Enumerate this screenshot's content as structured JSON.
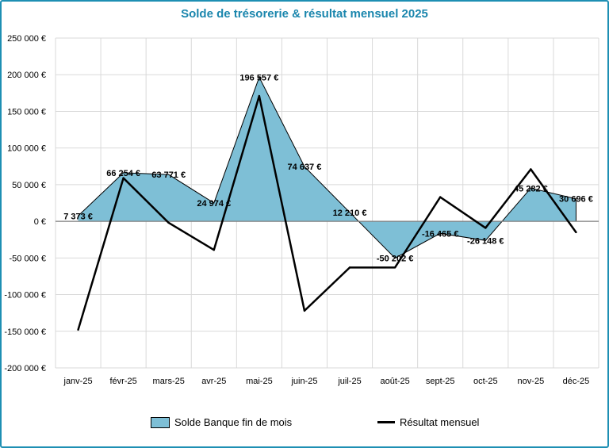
{
  "chart_data": {
    "type": "area+line",
    "title": "Solde de trésorerie & résultat mensuel 2025",
    "categories": [
      "janv-25",
      "févr-25",
      "mars-25",
      "avr-25",
      "mai-25",
      "juin-25",
      "juil-25",
      "août-25",
      "sept-25",
      "oct-25",
      "nov-25",
      "déc-25"
    ],
    "ylim": [
      -200000,
      250000
    ],
    "yticks": [
      250000,
      200000,
      150000,
      100000,
      50000,
      0,
      -50000,
      -100000,
      -150000,
      -200000
    ],
    "ytick_labels": [
      "250 000 €",
      "200 000 €",
      "150 000 €",
      "100 000 €",
      "50 000 €",
      "0 €",
      "-50 000 €",
      "-100 000 €",
      "-150 000 €",
      "-200 000 €"
    ],
    "grid": true,
    "series": [
      {
        "name": "Solde Banque fin de mois",
        "type": "area",
        "color": "#7ebfd6",
        "values": [
          7373,
          66254,
          63771,
          24974,
          196557,
          74637,
          12210,
          -50202,
          -16465,
          -26148,
          45282,
          30696
        ],
        "data_labels": [
          "7 373 €",
          "66 254 €",
          "63 771 €",
          "24 974 €",
          "196 557 €",
          "74 637 €",
          "12 210 €",
          "-50 202 €",
          "-16 465 €",
          "-26 148 €",
          "45 282 €",
          "30 696 €"
        ]
      },
      {
        "name": "Résultat mensuel",
        "type": "line",
        "color": "#000000",
        "values": [
          -148000,
          59000,
          -2000,
          -39000,
          171000,
          -122000,
          -63000,
          -63000,
          33000,
          -9000,
          71000,
          -15000
        ]
      }
    ],
    "legend_position": "bottom"
  }
}
